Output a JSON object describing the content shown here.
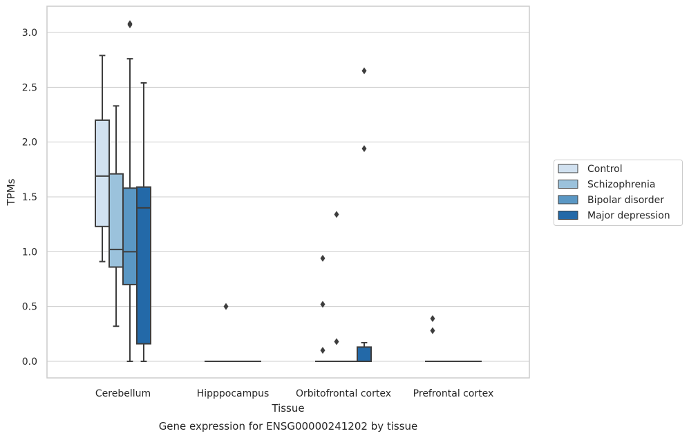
{
  "chart_data": {
    "type": "boxplot",
    "xlabel": "Tissue",
    "ylabel": "TPMs",
    "caption": "Gene expression for ENSG00000241202 by tissue",
    "ylim": [
      -0.15,
      3.25
    ],
    "yticks": [
      "0.0",
      "0.5",
      "1.0",
      "1.5",
      "2.0",
      "2.5",
      "3.0"
    ],
    "grid": true,
    "legend_position": "right",
    "categories": [
      "Cerebellum",
      "Hipppocampus",
      "Orbitofrontal cortex",
      "Prefrontal cortex"
    ],
    "series": [
      {
        "name": "Control",
        "color": "#d1e1f0",
        "boxes": [
          {
            "min": 0.91,
            "q1": 1.23,
            "median": 1.69,
            "q3": 2.2,
            "max": 2.79,
            "outliers": []
          },
          {
            "min": 0,
            "q1": 0,
            "median": 0,
            "q3": 0,
            "max": 0,
            "outliers": []
          },
          {
            "min": 0,
            "q1": 0,
            "median": 0,
            "q3": 0,
            "max": 0,
            "outliers": [
              0.1,
              0.52,
              0.94
            ]
          },
          {
            "min": 0,
            "q1": 0,
            "median": 0,
            "q3": 0,
            "max": 0,
            "outliers": [
              0.28,
              0.39
            ]
          }
        ]
      },
      {
        "name": "Schizophrenia",
        "color": "#9bc2dc",
        "boxes": [
          {
            "min": 0.32,
            "q1": 0.86,
            "median": 1.02,
            "q3": 1.71,
            "max": 2.33,
            "outliers": []
          },
          {
            "min": 0,
            "q1": 0,
            "median": 0,
            "q3": 0,
            "max": 0,
            "outliers": [
              0.5
            ]
          },
          {
            "min": 0,
            "q1": 0,
            "median": 0,
            "q3": 0,
            "max": 0,
            "outliers": [
              0.18,
              1.34
            ]
          },
          {
            "min": 0,
            "q1": 0,
            "median": 0,
            "q3": 0,
            "max": 0,
            "outliers": []
          }
        ]
      },
      {
        "name": "Bipolar disorder",
        "color": "#5a97c4",
        "boxes": [
          {
            "min": 0,
            "q1": 0.7,
            "median": 1.0,
            "q3": 1.58,
            "max": 2.76,
            "outliers": [
              3.07,
              3.08
            ]
          },
          {
            "min": 0,
            "q1": 0,
            "median": 0,
            "q3": 0,
            "max": 0,
            "outliers": []
          },
          {
            "min": 0,
            "q1": 0,
            "median": 0,
            "q3": 0,
            "max": 0,
            "outliers": []
          },
          {
            "min": 0,
            "q1": 0,
            "median": 0,
            "q3": 0,
            "max": 0,
            "outliers": []
          }
        ]
      },
      {
        "name": "Major depression",
        "color": "#2369a8",
        "boxes": [
          {
            "min": 0,
            "q1": 0.16,
            "median": 1.4,
            "q3": 1.59,
            "max": 2.54,
            "outliers": []
          },
          {
            "min": 0,
            "q1": 0,
            "median": 0,
            "q3": 0,
            "max": 0,
            "outliers": []
          },
          {
            "min": 0,
            "q1": 0,
            "median": 0,
            "q3": 0.13,
            "max": 0.17,
            "outliers": [
              1.94,
              2.65
            ]
          },
          {
            "min": 0,
            "q1": 0,
            "median": 0,
            "q3": 0,
            "max": 0,
            "outliers": []
          }
        ]
      }
    ]
  },
  "colors": {
    "grid": "#cccccc",
    "frame": "#cccccc",
    "line": "#3d3d3d"
  }
}
